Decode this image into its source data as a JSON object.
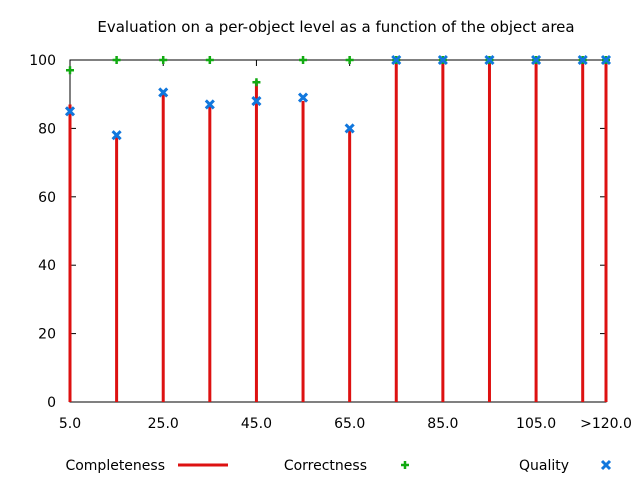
{
  "chart_data": {
    "type": "bar",
    "title": "Evaluation on a per-object level as a function of the object area",
    "xlabel": "",
    "ylabel": "",
    "x": [
      5,
      15,
      25,
      35,
      45,
      55,
      65,
      75,
      85,
      95,
      105,
      115,
      120
    ],
    "xlim": [
      5,
      120
    ],
    "ylim": [
      0,
      100
    ],
    "x_tick_values": [
      5,
      25,
      45,
      65,
      85,
      105,
      120
    ],
    "x_tick_labels": [
      "5.0",
      "25.0",
      "45.0",
      "65.0",
      "85.0",
      "105.0",
      ">120.0"
    ],
    "y_ticks": [
      0,
      20,
      40,
      60,
      80,
      100
    ],
    "grid": false,
    "legend_position": "bottom",
    "series": [
      {
        "name": "Completeness",
        "style": "impulses",
        "color": "#dd1111",
        "values": [
          87,
          78,
          91,
          87,
          94,
          88,
          80,
          100,
          100,
          100,
          100,
          100,
          100
        ]
      },
      {
        "name": "Correctness",
        "style": "plus",
        "color": "#11aa11",
        "values": [
          97,
          100,
          100,
          100,
          93.5,
          100,
          100,
          100,
          100,
          100,
          100,
          100,
          100
        ]
      },
      {
        "name": "Quality",
        "style": "cross",
        "color": "#1177dd",
        "values": [
          85,
          78,
          90.5,
          87,
          88,
          89,
          80,
          100,
          100,
          100,
          100,
          100,
          100
        ]
      }
    ]
  }
}
